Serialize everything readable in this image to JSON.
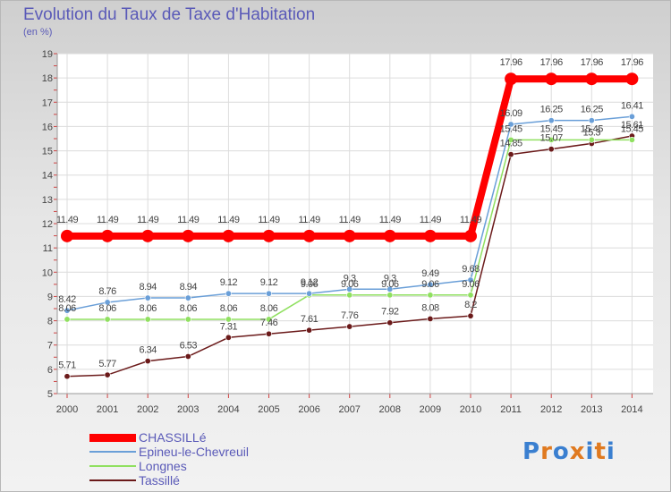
{
  "title": "Evolution du Taux de Taxe d'Habitation",
  "unit": "(en %)",
  "logo": {
    "text": "Proxiti",
    "letter_colors": [
      "#3a7fd0",
      "#e07a20",
      "#3a7fd0",
      "#e07a20",
      "#3a7fd0",
      "#e07a20",
      "#3a7fd0"
    ]
  },
  "chart_data": {
    "type": "line",
    "title": "Evolution du Taux de Taxe d'Habitation",
    "ylabel": "(en %)",
    "xlabel": "",
    "ylim": [
      5,
      19
    ],
    "yticks": [
      "5",
      "6",
      "7",
      "8",
      "9",
      "10",
      "11",
      "12",
      "13",
      "14",
      "15",
      "16",
      "17",
      "18",
      "19"
    ],
    "categories": [
      "2000",
      "2001",
      "2002",
      "2003",
      "2004",
      "2005",
      "2006",
      "2007",
      "2008",
      "2009",
      "2010",
      "2011",
      "2012",
      "2013",
      "2014"
    ],
    "grid": true,
    "legend_position": "bottom-left",
    "series": [
      {
        "name": "CHASSILLé",
        "color": "#ff0000",
        "values": [
          11.49,
          11.49,
          11.49,
          11.49,
          11.49,
          11.49,
          11.49,
          11.49,
          11.49,
          11.49,
          11.49,
          17.96,
          17.96,
          17.96,
          17.96
        ],
        "labels": [
          "11.49",
          "11.49",
          "11.49",
          "11.49",
          "11.49",
          "11.49",
          "11.49",
          "11.49",
          "11.49",
          "11.49",
          "11.49",
          "17.96",
          "17.96",
          "17.96",
          "17.96"
        ]
      },
      {
        "name": "Epineu-le-Chevreuil",
        "color": "#6a9fd8",
        "values": [
          8.42,
          8.76,
          8.94,
          8.94,
          9.12,
          9.12,
          9.12,
          9.3,
          9.3,
          9.49,
          9.68,
          16.09,
          16.25,
          16.25,
          16.41
        ],
        "labels": [
          "8.42",
          "8.76",
          "8.94",
          "8.94",
          "9.12",
          "9.12",
          "9.12",
          "9.3",
          "9.3",
          "9.49",
          "9.68",
          "16.09",
          "16.25",
          "16.25",
          "16.41"
        ]
      },
      {
        "name": "Longnes",
        "color": "#90e060",
        "values": [
          8.06,
          8.06,
          8.06,
          8.06,
          8.06,
          8.06,
          9.06,
          9.06,
          9.06,
          9.06,
          9.06,
          15.45,
          15.45,
          15.45,
          15.45
        ],
        "labels": [
          "8.06",
          "8.06",
          "8.06",
          "8.06",
          "8.06",
          "8.06",
          "9.06",
          "9.06",
          "9.06",
          "9.06",
          "9.06",
          "15.45",
          "15.45",
          "15.45",
          "15.45"
        ]
      },
      {
        "name": "Tassillé",
        "color": "#6b1a1a",
        "values": [
          5.71,
          5.77,
          6.34,
          6.53,
          7.31,
          7.46,
          7.61,
          7.76,
          7.92,
          8.08,
          8.2,
          14.85,
          15.07,
          15.3,
          15.61
        ],
        "labels": [
          "5.71",
          "5.77",
          "6.34",
          "6.53",
          "7.31",
          "7.46",
          "7.61",
          "7.76",
          "7.92",
          "8.08",
          "8.2",
          "14.85",
          "15.07",
          "15.3",
          "15.61"
        ]
      }
    ]
  }
}
